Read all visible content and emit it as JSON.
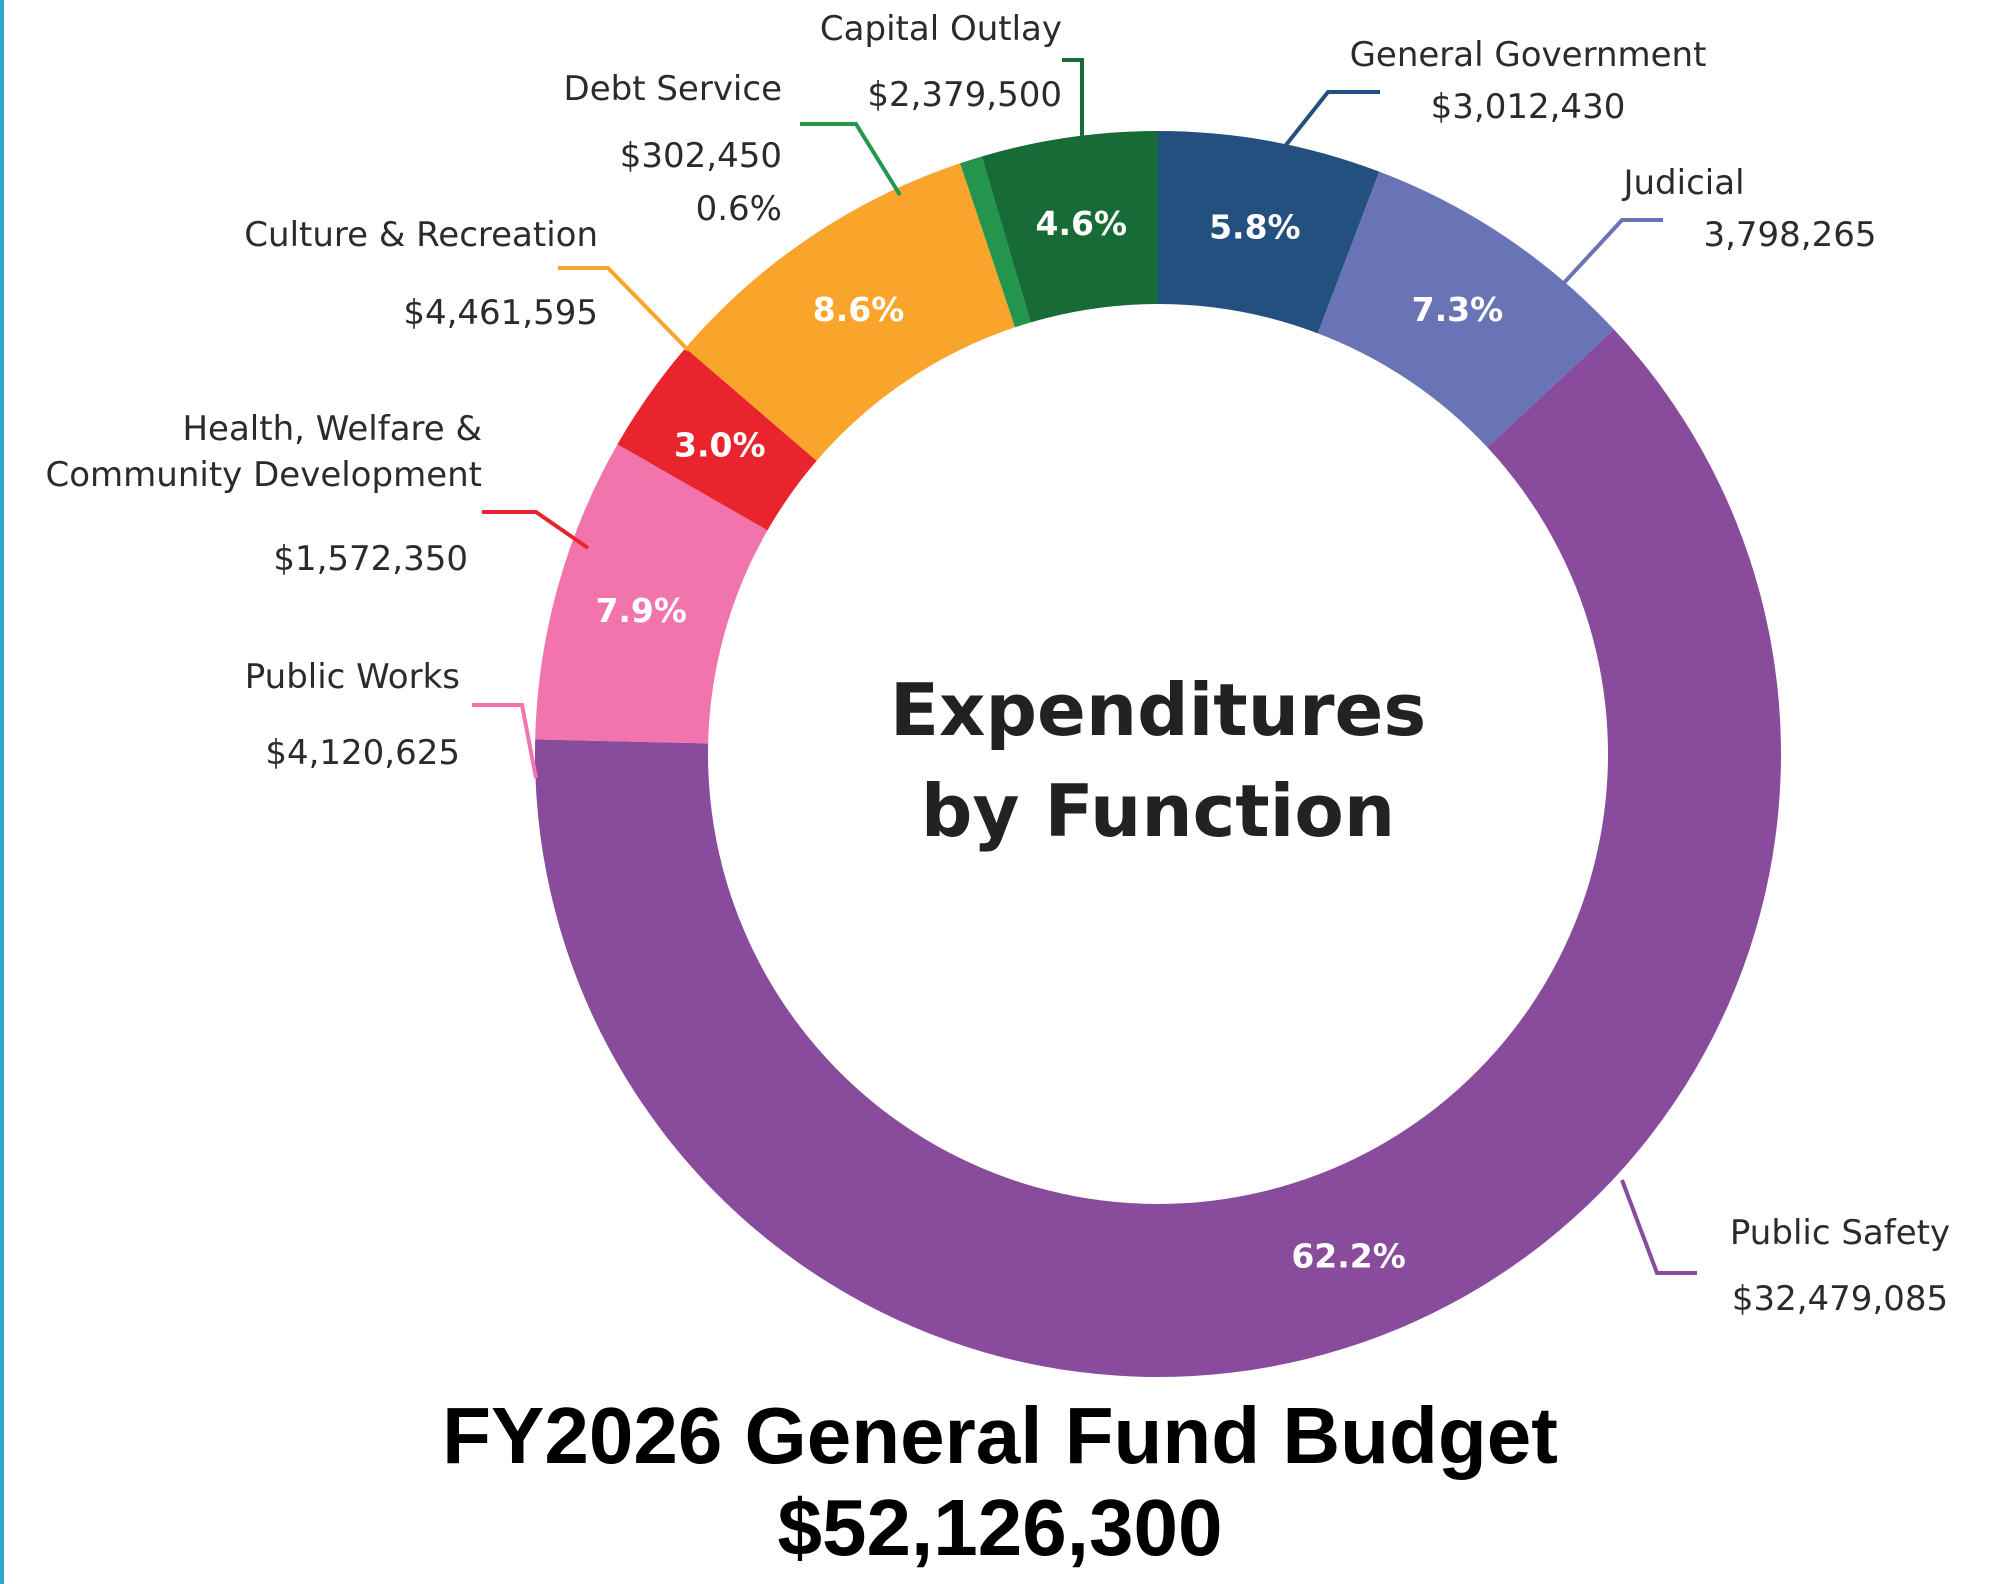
{
  "chart_data": {
    "type": "pie",
    "subtype": "donut",
    "center_title_lines": [
      "Expenditures",
      "by Function"
    ],
    "slices": [
      {
        "name": "General Government",
        "value_label": "$3,012,430",
        "value": 3012430,
        "percent_label": "5.8%",
        "percent": 5.8,
        "color": "#24507f"
      },
      {
        "name": "Judicial",
        "value_label": "3,798,265",
        "value": 3798265,
        "percent_label": "7.3%",
        "percent": 7.3,
        "color": "#6874b6"
      },
      {
        "name": "Public Safety",
        "value_label": "$32,479,085",
        "value": 32479085,
        "percent_label": "62.2%",
        "percent": 62.2,
        "color": "#894b9c"
      },
      {
        "name": "Public Works",
        "value_label": "$4,120,625",
        "value": 4120625,
        "percent_label": "7.9%",
        "percent": 7.9,
        "color": "#f274ad"
      },
      {
        "name": "Health, Welfare & Community Development",
        "name_lines": [
          "Health, Welfare &",
          "Community Development"
        ],
        "value_label": "$1,572,350",
        "value": 1572350,
        "percent_label": "3.0%",
        "percent": 3.0,
        "color": "#ea242c"
      },
      {
        "name": "Culture & Recreation",
        "value_label": "$4,461,595",
        "value": 4461595,
        "percent_label": "8.6%",
        "percent": 8.6,
        "color": "#f9a52b"
      },
      {
        "name": "Debt Service",
        "value_label": "$302,450",
        "value": 302450,
        "percent_label": "0.6%",
        "percent": 0.6,
        "color": "#23954d"
      },
      {
        "name": "Capital Outlay",
        "value_label": "$2,379,500",
        "value": 2379500,
        "percent_label": "4.6%",
        "percent": 4.6,
        "color": "#166b37"
      }
    ]
  },
  "footer": {
    "title": "FY2026 General Fund Budget",
    "total": "$52,126,300"
  }
}
